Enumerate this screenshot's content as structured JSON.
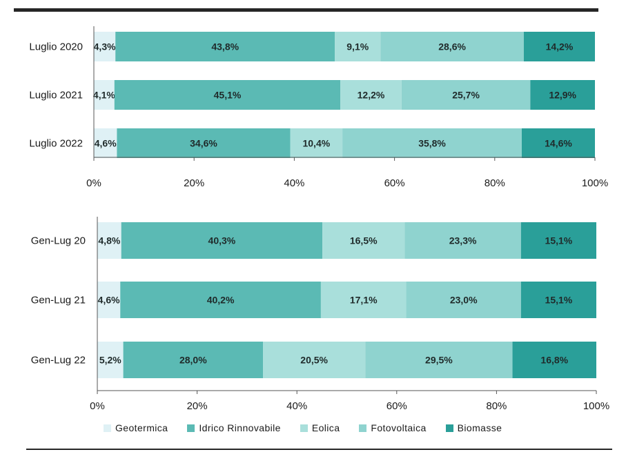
{
  "colors": {
    "geotermica": "#dff1f5",
    "idrico": "#5bbab4",
    "eolica": "#a9dfdb",
    "fotovoltaica": "#8fd3cf",
    "biomasse": "#2a9f99"
  },
  "legend": [
    {
      "label": "Geotermica",
      "color": "#dff1f5"
    },
    {
      "label": "Idrico Rinnovabile",
      "color": "#5bbab4"
    },
    {
      "label": "Eolica",
      "color": "#a9dfdb"
    },
    {
      "label": "Fotovoltaica",
      "color": "#8fd3cf"
    },
    {
      "label": "Biomasse",
      "color": "#2a9f99"
    }
  ],
  "chart_data": [
    {
      "type": "bar",
      "orientation": "horizontal",
      "stacked": "percent",
      "categories": [
        "Luglio 2020",
        "Luglio 2021",
        "Luglio 2022"
      ],
      "series": [
        {
          "name": "Geotermica",
          "values": [
            4.3,
            4.1,
            4.6
          ],
          "labels": [
            "4,3%",
            "4,1%",
            "4,6%"
          ]
        },
        {
          "name": "Idrico Rinnovabile",
          "values": [
            43.8,
            45.1,
            34.6
          ],
          "labels": [
            "43,8%",
            "45,1%",
            "34,6%"
          ]
        },
        {
          "name": "Eolica",
          "values": [
            9.1,
            12.2,
            10.4
          ],
          "labels": [
            "9,1%",
            "12,2%",
            "10,4%"
          ]
        },
        {
          "name": "Fotovoltaica",
          "values": [
            28.6,
            25.7,
            35.8
          ],
          "labels": [
            "28,6%",
            "25,7%",
            "35,8%"
          ]
        },
        {
          "name": "Biomasse",
          "values": [
            14.2,
            12.9,
            14.6
          ],
          "labels": [
            "14,2%",
            "12,9%",
            "14,6%"
          ]
        }
      ],
      "xlim": [
        0,
        100
      ],
      "xticks": [
        "0%",
        "20%",
        "40%",
        "60%",
        "80%",
        "100%"
      ],
      "grid": false
    },
    {
      "type": "bar",
      "orientation": "horizontal",
      "stacked": "percent",
      "categories": [
        "Gen-Lug 20",
        "Gen-Lug 21",
        "Gen-Lug 22"
      ],
      "series": [
        {
          "name": "Geotermica",
          "values": [
            4.8,
            4.6,
            5.2
          ],
          "labels": [
            "4,8%",
            "4,6%",
            "5,2%"
          ]
        },
        {
          "name": "Idrico Rinnovabile",
          "values": [
            40.3,
            40.2,
            28.0
          ],
          "labels": [
            "40,3%",
            "40,2%",
            "28,0%"
          ]
        },
        {
          "name": "Eolica",
          "values": [
            16.5,
            17.1,
            20.5
          ],
          "labels": [
            "16,5%",
            "17,1%",
            "20,5%"
          ]
        },
        {
          "name": "Fotovoltaica",
          "values": [
            23.3,
            23.0,
            29.5
          ],
          "labels": [
            "23,3%",
            "23,0%",
            "29,5%"
          ]
        },
        {
          "name": "Biomasse",
          "values": [
            15.1,
            15.1,
            16.8
          ],
          "labels": [
            "15,1%",
            "15,1%",
            "16,8%"
          ]
        }
      ],
      "xlim": [
        0,
        100
      ],
      "xticks": [
        "0%",
        "20%",
        "40%",
        "60%",
        "80%",
        "100%"
      ],
      "grid": false,
      "legend_position": "bottom"
    }
  ]
}
